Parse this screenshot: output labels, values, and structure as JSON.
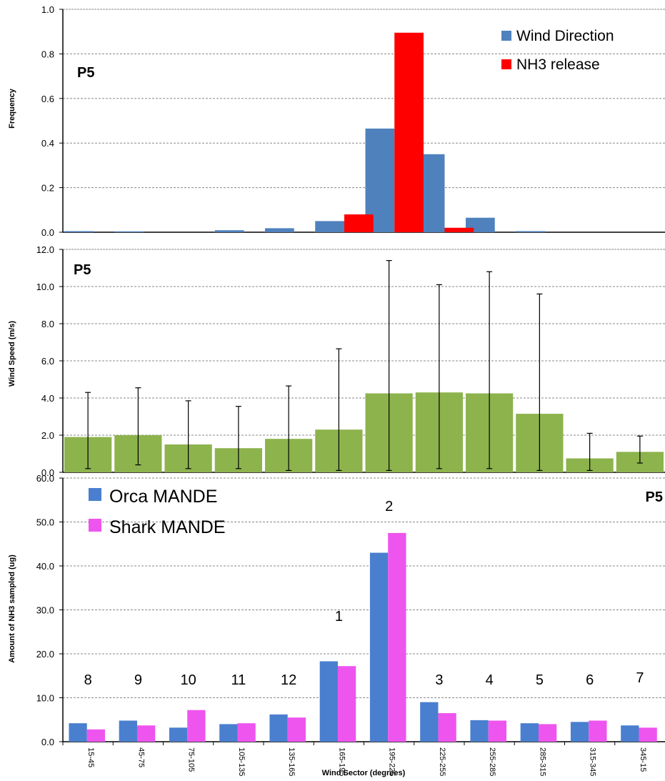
{
  "colors": {
    "wind_direction": "#4f81bd",
    "nh3_release": "#ff0000",
    "wind_speed": "#8db34d",
    "orca": "#4a7fcf",
    "shark": "#ee55ee",
    "grid": "#888888",
    "error_bar": "#000000"
  },
  "x_axis": {
    "label": "Wind Sector (degrees)",
    "categories": [
      "15-45",
      "45-75",
      "75-105",
      "105-135",
      "135-165",
      "165-195",
      "195-225",
      "225-255",
      "255-285",
      "285-315",
      "315-345",
      "345-15"
    ]
  },
  "chart_data": [
    {
      "id": "frequency",
      "type": "bar",
      "panel_label": "P5",
      "ylabel": "Frequency",
      "ylim": [
        0,
        1.0
      ],
      "yticks": [
        "0.0",
        "0.2",
        "0.4",
        "0.6",
        "0.8",
        "1.0"
      ],
      "ytick_values": [
        0,
        0.2,
        0.4,
        0.6,
        0.8,
        1.0
      ],
      "grid": true,
      "legend": "top-right",
      "series": [
        {
          "name": "Wind Direction",
          "color_key": "wind_direction",
          "values": [
            0.005,
            0.004,
            0.0,
            0.009,
            0.018,
            0.05,
            0.465,
            0.35,
            0.065,
            0.005,
            0.0,
            0.0
          ]
        },
        {
          "name": "NH3 release",
          "color_key": "nh3_release",
          "values": [
            0,
            0,
            0,
            0,
            0,
            0.08,
            0.895,
            0.02,
            0,
            0,
            0,
            0
          ]
        }
      ]
    },
    {
      "id": "wind_speed",
      "type": "bar",
      "panel_label": "P5",
      "ylabel": "Wind Speed (m/s)",
      "ylim": [
        0,
        12.0
      ],
      "yticks": [
        "0.0",
        "2.0",
        "4.0",
        "6.0",
        "8.0",
        "10.0",
        "12.0"
      ],
      "ytick_values": [
        0,
        2,
        4,
        6,
        8,
        10,
        12
      ],
      "grid": true,
      "series": [
        {
          "color_key": "wind_speed",
          "values": [
            1.9,
            2.0,
            1.5,
            1.3,
            1.8,
            2.3,
            4.25,
            4.3,
            4.25,
            3.15,
            0.75,
            1.1
          ],
          "err_low": [
            0.2,
            0.4,
            0.2,
            0.2,
            0.1,
            0.1,
            0.1,
            0.2,
            0.2,
            0.1,
            0.1,
            0.5
          ],
          "err_high": [
            4.3,
            4.55,
            3.85,
            3.55,
            4.65,
            6.65,
            11.4,
            10.1,
            10.8,
            9.6,
            2.1,
            1.95
          ]
        }
      ]
    },
    {
      "id": "nh3_sampled",
      "type": "bar",
      "panel_label": "P5",
      "ylabel": "Amount of NH3 sampled (ug)",
      "ylim": [
        0,
        60.0
      ],
      "yticks": [
        "0.0",
        "10.0",
        "20.0",
        "30.0",
        "40.0",
        "50.0",
        "60.0"
      ],
      "ytick_values": [
        0,
        10,
        20,
        30,
        40,
        50,
        60
      ],
      "grid": true,
      "legend": "top-left",
      "series": [
        {
          "name": "Orca MANDE",
          "color_key": "orca",
          "values": [
            4.2,
            4.8,
            3.2,
            4.0,
            6.2,
            18.3,
            43.0,
            9.0,
            4.9,
            4.2,
            4.5,
            3.7
          ]
        },
        {
          "name": "Shark MANDE",
          "color_key": "shark",
          "values": [
            2.8,
            3.7,
            7.2,
            4.2,
            5.5,
            17.2,
            47.5,
            6.5,
            4.8,
            4.0,
            4.8,
            3.2
          ]
        }
      ],
      "sector_numbers": [
        "8",
        "9",
        "10",
        "11",
        "12",
        "1",
        "2",
        "3",
        "4",
        "5",
        "6",
        "7"
      ],
      "sector_number_values": [
        13.0,
        13.0,
        13.0,
        13.0,
        13.0,
        27.5,
        52.5,
        13.0,
        13.0,
        13.0,
        13.0,
        13.5
      ]
    }
  ]
}
